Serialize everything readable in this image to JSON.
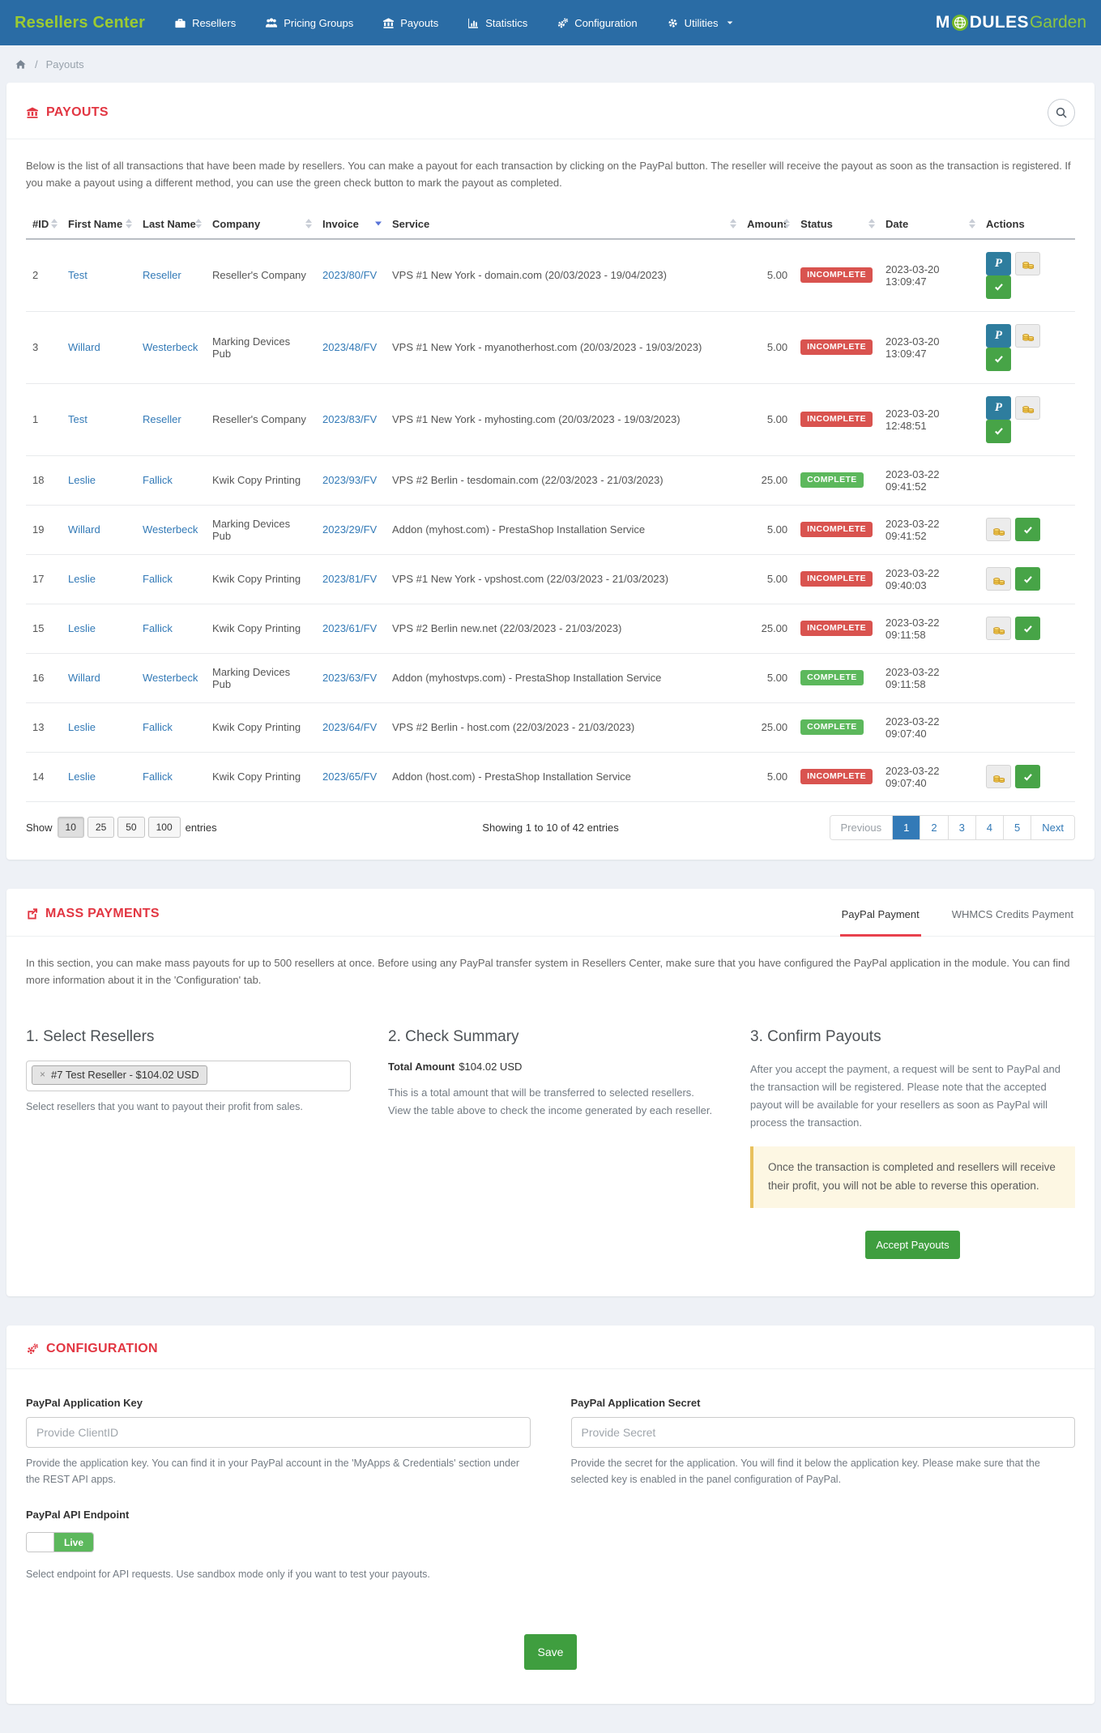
{
  "colors": {
    "navbar_blue": "#2a6ca5",
    "brand_green": "#9ccb31",
    "accent_red": "#e23642",
    "link_blue": "#337ab7",
    "status_incomplete": "#d9534f",
    "status_complete": "#5cb85c",
    "button_green": "#3f9e3f",
    "paypal_teal": "#2e7d9e"
  },
  "navbar": {
    "brand": "Resellers Center",
    "items": [
      {
        "label": "Resellers",
        "icon": "briefcase-icon",
        "caret": false
      },
      {
        "label": "Pricing Groups",
        "icon": "users-icon",
        "caret": false
      },
      {
        "label": "Payouts",
        "icon": "bank-icon",
        "caret": false
      },
      {
        "label": "Statistics",
        "icon": "chart-icon",
        "caret": false
      },
      {
        "label": "Configuration",
        "icon": "gears-icon",
        "caret": false
      },
      {
        "label": "Utilities",
        "icon": "gear-icon",
        "caret": true
      }
    ],
    "logo": {
      "part1": "M",
      "part2": "DULES",
      "part3": "Garden",
      "o_icon": "globe-icon"
    }
  },
  "breadcrumb": {
    "home_icon": "home-icon",
    "page": "Payouts"
  },
  "payouts": {
    "title": "PAYOUTS",
    "title_icon": "bank-icon",
    "search_icon": "search-icon",
    "description": "Below is the list of all transactions that have been made by resellers. You can make a payout for each transaction by clicking on the PayPal button. The reseller will receive the payout as soon as the transaction is registered. If you make a payout using a different method, you can use the green check button to mark the payout as completed.",
    "table": {
      "columns": [
        {
          "label": "#ID",
          "sort": "both"
        },
        {
          "label": "First Name",
          "sort": "both"
        },
        {
          "label": "Last Name",
          "sort": "both"
        },
        {
          "label": "Company",
          "sort": "both"
        },
        {
          "label": "Invoice",
          "sort": "desc"
        },
        {
          "label": "Service",
          "sort": "both"
        },
        {
          "label": "Amount",
          "sort": "both"
        },
        {
          "label": "Status",
          "sort": "both"
        },
        {
          "label": "Date",
          "sort": "both"
        },
        {
          "label": "Actions",
          "sort": "none"
        }
      ],
      "rows": [
        {
          "id": "2",
          "first_name": "Test",
          "last_name": "Reseller",
          "company": "Reseller's Company",
          "invoice": "2023/80/FV",
          "service": "VPS #1 New York - domain.com (20/03/2023 - 19/04/2023)",
          "amount": "5.00",
          "status": "INCOMPLETE",
          "date": "2023-03-20 13:09:47",
          "actions": [
            "paypal",
            "credits",
            "complete"
          ]
        },
        {
          "id": "3",
          "first_name": "Willard",
          "last_name": "Westerbeck",
          "company": "Marking Devices Pub",
          "invoice": "2023/48/FV",
          "service": "VPS #1 New York - myanotherhost.com (20/03/2023 - 19/03/2023)",
          "amount": "5.00",
          "status": "INCOMPLETE",
          "date": "2023-03-20 13:09:47",
          "actions": [
            "paypal",
            "credits",
            "complete"
          ]
        },
        {
          "id": "1",
          "first_name": "Test",
          "last_name": "Reseller",
          "company": "Reseller's Company",
          "invoice": "2023/83/FV",
          "service": "VPS #1 New York - myhosting.com (20/03/2023 - 19/03/2023)",
          "amount": "5.00",
          "status": "INCOMPLETE",
          "date": "2023-03-20 12:48:51",
          "actions": [
            "paypal",
            "credits",
            "complete"
          ]
        },
        {
          "id": "18",
          "first_name": "Leslie",
          "last_name": "Fallick",
          "company": "Kwik Copy Printing",
          "invoice": "2023/93/FV",
          "service": "VPS #2 Berlin - tesdomain.com (22/03/2023 - 21/03/2023)",
          "amount": "25.00",
          "status": "COMPLETE",
          "date": "2023-03-22 09:41:52",
          "actions": []
        },
        {
          "id": "19",
          "first_name": "Willard",
          "last_name": "Westerbeck",
          "company": "Marking Devices Pub",
          "invoice": "2023/29/FV",
          "service": "Addon (myhost.com) - PrestaShop Installation Service",
          "amount": "5.00",
          "status": "INCOMPLETE",
          "date": "2023-03-22 09:41:52",
          "actions": [
            "credits",
            "complete"
          ]
        },
        {
          "id": "17",
          "first_name": "Leslie",
          "last_name": "Fallick",
          "company": "Kwik Copy Printing",
          "invoice": "2023/81/FV",
          "service": "VPS #1 New York - vpshost.com (22/03/2023 - 21/03/2023)",
          "amount": "5.00",
          "status": "INCOMPLETE",
          "date": "2023-03-22 09:40:03",
          "actions": [
            "credits",
            "complete"
          ]
        },
        {
          "id": "15",
          "first_name": "Leslie",
          "last_name": "Fallick",
          "company": "Kwik Copy Printing",
          "invoice": "2023/61/FV",
          "service": "VPS #2 Berlin new.net (22/03/2023 - 21/03/2023)",
          "amount": "25.00",
          "status": "INCOMPLETE",
          "date": "2023-03-22 09:11:58",
          "actions": [
            "credits",
            "complete"
          ]
        },
        {
          "id": "16",
          "first_name": "Willard",
          "last_name": "Westerbeck",
          "company": "Marking Devices Pub",
          "invoice": "2023/63/FV",
          "service": "Addon (myhostvps.com) - PrestaShop Installation Service",
          "amount": "5.00",
          "status": "COMPLETE",
          "date": "2023-03-22 09:11:58",
          "actions": []
        },
        {
          "id": "13",
          "first_name": "Leslie",
          "last_name": "Fallick",
          "company": "Kwik Copy Printing",
          "invoice": "2023/64/FV",
          "service": "VPS #2 Berlin - host.com (22/03/2023 - 21/03/2023)",
          "amount": "25.00",
          "status": "COMPLETE",
          "date": "2023-03-22 09:07:40",
          "actions": []
        },
        {
          "id": "14",
          "first_name": "Leslie",
          "last_name": "Fallick",
          "company": "Kwik Copy Printing",
          "invoice": "2023/65/FV",
          "service": "Addon (host.com) - PrestaShop Installation Service",
          "amount": "5.00",
          "status": "INCOMPLETE",
          "date": "2023-03-22 09:07:40",
          "actions": [
            "credits",
            "complete"
          ]
        }
      ]
    },
    "footer": {
      "show_label": "Show",
      "page_sizes": [
        "10",
        "25",
        "50",
        "100"
      ],
      "selected_page_size": "10",
      "entries_label": "entries",
      "showing_text": "Showing 1 to 10 of 42 entries",
      "pagination": {
        "previous": "Previous",
        "pages": [
          "1",
          "2",
          "3",
          "4",
          "5"
        ],
        "active_page": "1",
        "next": "Next"
      }
    }
  },
  "mass_payments": {
    "title": "MASS PAYMENTS",
    "title_icon": "share-icon",
    "tabs": [
      {
        "label": "PayPal Payment",
        "active": true
      },
      {
        "label": "WHMCS Credits Payment",
        "active": false
      }
    ],
    "description": "In this section, you can make mass payouts for up to 500 resellers at once. Before using any PayPal transfer system in Resellers Center, make sure that you have configured the PayPal application in the module. You can find more information about it in the 'Configuration' tab.",
    "select_resellers": {
      "heading": "1. Select Resellers",
      "tag": "#7 Test Reseller - $104.02 USD",
      "help": "Select resellers that you want to payout their profit from sales."
    },
    "check_summary": {
      "heading": "2. Check Summary",
      "total_label": "Total Amount",
      "total_value": "$104.02 USD",
      "help": "This is a total amount that will be transferred to selected resellers. View the table above to check the income generated by each reseller."
    },
    "confirm_payouts": {
      "heading": "3. Confirm Payouts",
      "text": "After you accept the payment, a request will be sent to PayPal and the transaction will be registered. Please note that the accepted payout will be available for your resellers as soon as PayPal will process the transaction.",
      "warning": "Once the transaction is completed and resellers will receive their profit, you will not be able to reverse this operation.",
      "button": "Accept Payouts"
    }
  },
  "configuration": {
    "title": "CONFIGURATION",
    "title_icon": "gears-icon",
    "fields": {
      "app_key": {
        "label": "PayPal Application Key",
        "placeholder": "Provide ClientID",
        "value": "",
        "help": "Provide the application key. You can find it in your PayPal account in the 'MyApps & Credentials' section under the REST API apps."
      },
      "app_secret": {
        "label": "PayPal Application Secret",
        "placeholder": "Provide Secret",
        "value": "",
        "help": "Provide the secret for the application. You will find it below the application key. Please make sure that the selected key is enabled in the panel configuration of PayPal."
      },
      "endpoint": {
        "label": "PayPal API Endpoint",
        "value": "Live",
        "help": "Select endpoint for API requests. Use sandbox mode only if you want to test your payouts."
      }
    },
    "save_button": "Save"
  }
}
